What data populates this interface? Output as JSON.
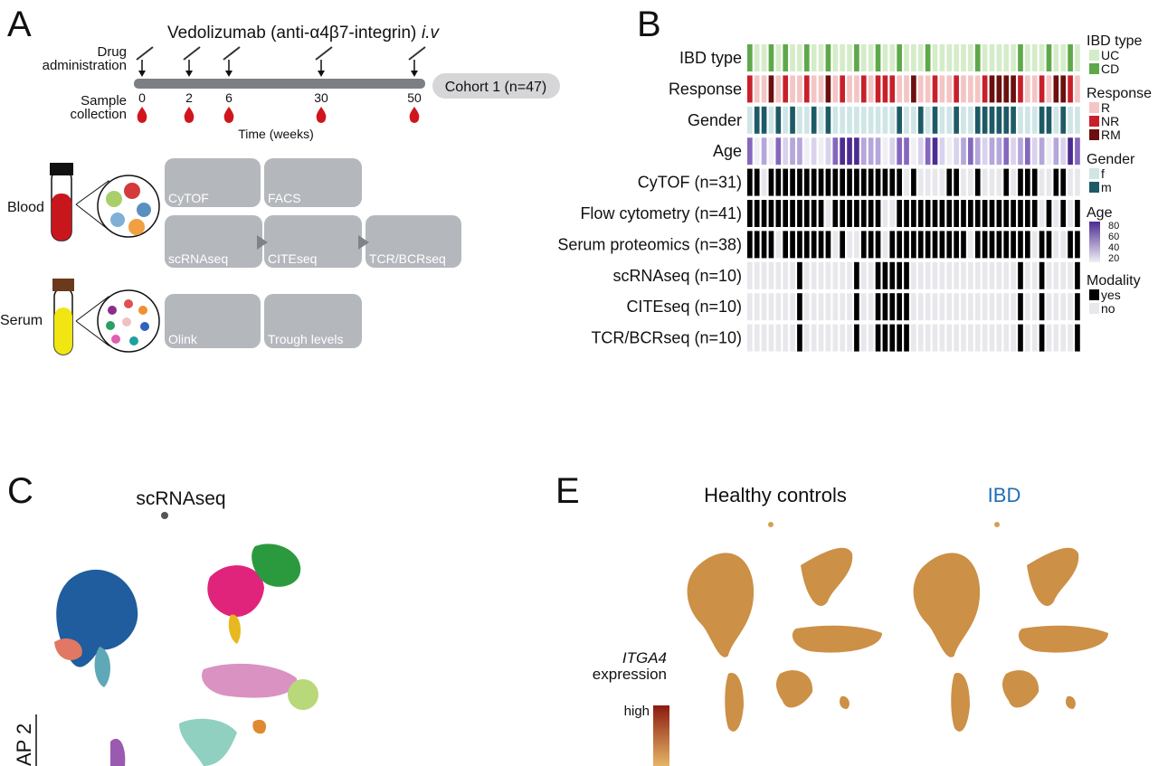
{
  "panel_a": {
    "letter": "A",
    "title": "Vedolizumab (anti-α4β7-integrin)",
    "route": "i.v",
    "drug_label": [
      "Drug",
      "administration"
    ],
    "sample_label": [
      "Sample",
      "collection"
    ],
    "timepoints": [
      0,
      2,
      6,
      30,
      50
    ],
    "time_axis": "Time (weeks)",
    "cohort": "Cohort 1 (n=47)",
    "blood": "Blood",
    "serum": "Serum",
    "blood_assays": [
      "CyTOF",
      "FACS",
      "scRNAseq",
      "CITEseq",
      "TCR/BCRseq"
    ],
    "serum_assays": [
      "Olink",
      "Trough levels"
    ]
  },
  "panel_b": {
    "letter": "B",
    "rows": [
      {
        "label": "IBD type",
        "cells": "CUUCUCUUCUUCUUUCUUCUUCUUUCUUUUUUCUUUUUCUUUCUUCU"
      },
      {
        "label": "Response",
        "cells": "NRRMRNRRNRRMRNRRNRNNNRRMRRNRRNRRRNMMMMNRRNRMMNR"
      },
      {
        "label": "Gender",
        "cells": "fmmfmfmffmfmfffffffffmffmfmffmffmmmmmmfffmmfmff"
      },
      {
        "label": "Age",
        "cells": "30203122010134442220133013410123212231231202143"
      },
      {
        "label": "CyTOF (n=31)",
        "cells": "11011111111111111111110100001100100010111001100"
      },
      {
        "label": "Flow cytometry (n=41)",
        "cells": "11111111111011111110011111111111111111111010101"
      },
      {
        "label": "Serum proteomics (n=38)",
        "cells": "11110111111101001110111111111110111111110110011"
      },
      {
        "label": "scRNAseq (n=10)",
        "cells": "00000001000000010011111000000000000000100100001"
      },
      {
        "label": "CITEseq (n=10)",
        "cells": "00000001000000010011111000000000000000100100001"
      },
      {
        "label": "TCR/BCRseq (n=10)",
        "cells": "00000001000000010011111000000000000000100100001"
      }
    ],
    "legends": [
      {
        "title": "IBD type",
        "items": [
          {
            "code": "U",
            "label": "UC",
            "color": "#d5ecc9"
          },
          {
            "code": "C",
            "label": "CD",
            "color": "#5fa84a"
          }
        ]
      },
      {
        "title": "Response",
        "items": [
          {
            "code": "R",
            "label": "R",
            "color": "#f4c5c5"
          },
          {
            "code": "N",
            "label": "NR",
            "color": "#c8202b"
          },
          {
            "code": "M",
            "label": "RM",
            "color": "#6b0f0f"
          }
        ]
      },
      {
        "title": "Gender",
        "items": [
          {
            "code": "f",
            "label": "f",
            "color": "#cfe5e6"
          },
          {
            "code": "m",
            "label": "m",
            "color": "#1e5a66"
          }
        ]
      },
      {
        "title": "Age",
        "ticks": [
          80,
          60,
          40,
          20
        ],
        "scale": {
          "0": "#f0eff4",
          "1": "#d9d2ec",
          "2": "#b5a6db",
          "3": "#8468bd",
          "4": "#4d2c91"
        }
      },
      {
        "title": "Modality",
        "items": [
          {
            "code": "1",
            "label": "yes",
            "color": "#000000"
          },
          {
            "code": "0",
            "label": "no",
            "color": "#e8e8ec"
          }
        ]
      }
    ]
  },
  "panel_c": {
    "letter": "C",
    "title": "scRNAseq",
    "axis": "AP 2"
  },
  "panel_e": {
    "letter": "E",
    "groups": [
      "Healthy controls",
      "IBD"
    ],
    "gene": "ITGA4",
    "gene_caption": "expression",
    "scale_label": "high"
  }
}
